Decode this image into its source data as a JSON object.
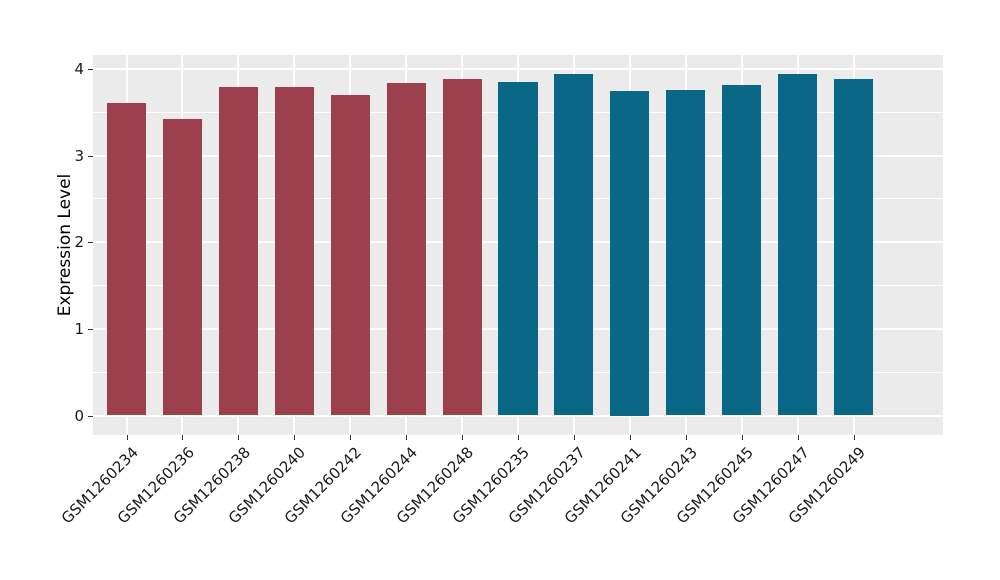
{
  "chart_data": {
    "type": "bar",
    "title": "",
    "xlabel": "",
    "ylabel": "Expression Level",
    "ylim": [
      0,
      4.16
    ],
    "yticks": [
      0,
      1,
      2,
      3,
      4
    ],
    "yticks_minor": [
      0.5,
      1.5,
      2.5,
      3.5
    ],
    "grid": "white major horizontal + vertical at bar centers, white minor horizontal, on gray panel",
    "legend_position": "none",
    "categories": [
      "GSM1260234",
      "GSM1260236",
      "GSM1260238",
      "GSM1260240",
      "GSM1260242",
      "GSM1260244",
      "GSM1260248",
      "GSM1260235",
      "GSM1260237",
      "GSM1260241",
      "GSM1260243",
      "GSM1260245",
      "GSM1260247",
      "GSM1260249"
    ],
    "values": [
      3.61,
      3.42,
      3.79,
      3.79,
      3.7,
      3.84,
      3.88,
      3.85,
      3.94,
      3.75,
      3.76,
      3.81,
      3.94,
      3.89
    ],
    "bar_groups": [
      "A",
      "A",
      "A",
      "A",
      "A",
      "A",
      "A",
      "B",
      "B",
      "B",
      "B",
      "B",
      "B",
      "B"
    ],
    "group_colors": {
      "A": "#9D404E",
      "B": "#0A6886"
    },
    "colors": {
      "panel_background": "#EBEBEB",
      "gridline": "#FFFFFF",
      "text": "#1A1A1A",
      "tick_mark": "#333333"
    }
  }
}
